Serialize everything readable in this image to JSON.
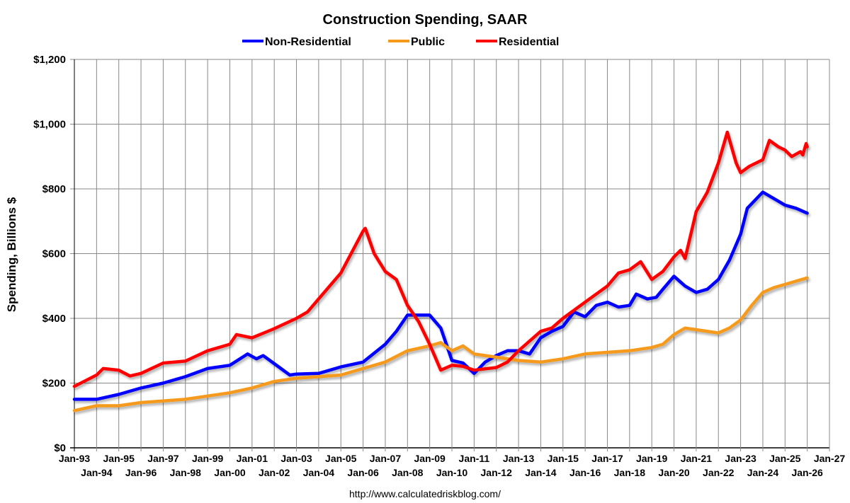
{
  "chart_data": {
    "type": "line",
    "title": "Construction Spending, SAAR",
    "ylabel": "Spending, Billions $",
    "xlabel": "",
    "source": "http://www.calculatedriskblog.com/",
    "legend_placement": "top-center",
    "grid": true,
    "ylim": [
      0,
      1200
    ],
    "yticks": [
      0,
      200,
      400,
      600,
      800,
      1000,
      1200
    ],
    "ytick_labels": [
      "$0",
      "$200",
      "$400",
      "$600",
      "$800",
      "$1,000",
      "$1,200"
    ],
    "xlim": [
      1993,
      2027
    ],
    "xtick_labels": [
      "Jan-93",
      "Jan-94",
      "Jan-95",
      "Jan-96",
      "Jan-97",
      "Jan-98",
      "Jan-99",
      "Jan-00",
      "Jan-01",
      "Jan-02",
      "Jan-03",
      "Jan-04",
      "Jan-05",
      "Jan-06",
      "Jan-07",
      "Jan-08",
      "Jan-09",
      "Jan-10",
      "Jan-11",
      "Jan-12",
      "Jan-13",
      "Jan-14",
      "Jan-15",
      "Jan-16",
      "Jan-17",
      "Jan-18",
      "Jan-19",
      "Jan-20",
      "Jan-21",
      "Jan-22",
      "Jan-23",
      "Jan-24",
      "Jan-25",
      "Jan-26",
      "Jan-27"
    ],
    "series": [
      {
        "name": "Non-Residential",
        "color": "#0000ff",
        "x": [
          1993,
          1994,
          1995,
          1996,
          1997,
          1998,
          1999,
          2000,
          2000.8,
          2001.2,
          2001.5,
          2002,
          2002.7,
          2003,
          2004,
          2005,
          2006,
          2007,
          2007.5,
          2008,
          2008.5,
          2009,
          2009.5,
          2010,
          2010.5,
          2011,
          2011.5,
          2012,
          2012.5,
          2013,
          2013.5,
          2014,
          2014.5,
          2015,
          2015.5,
          2016,
          2016.5,
          2017,
          2017.5,
          2018,
          2018.3,
          2018.8,
          2019.2,
          2019.5,
          2020,
          2020.5,
          2021,
          2021.5,
          2022,
          2022.5,
          2023,
          2023.3,
          2024,
          2024.5,
          2025,
          2025.5,
          2026
        ],
        "y": [
          150,
          150,
          165,
          185,
          200,
          220,
          245,
          255,
          290,
          275,
          285,
          260,
          225,
          228,
          230,
          250,
          265,
          320,
          360,
          410,
          410,
          410,
          370,
          270,
          262,
          230,
          265,
          285,
          300,
          300,
          290,
          340,
          360,
          375,
          420,
          405,
          440,
          450,
          435,
          440,
          475,
          460,
          465,
          490,
          530,
          500,
          480,
          490,
          520,
          580,
          660,
          740,
          790,
          770,
          750,
          740,
          725
        ]
      },
      {
        "name": "Public",
        "color": "#f59a1b",
        "x": [
          1993,
          1994,
          1995,
          1996,
          1997,
          1998,
          1999,
          2000,
          2001,
          2002,
          2003,
          2004,
          2005,
          2006,
          2007,
          2008,
          2009,
          2009.5,
          2010,
          2010.5,
          2011,
          2012,
          2013,
          2014,
          2015,
          2016,
          2017,
          2018,
          2019,
          2019.5,
          2020,
          2020.5,
          2021,
          2022,
          2022.5,
          2023,
          2023.5,
          2024,
          2024.5,
          2025,
          2025.5,
          2026
        ],
        "y": [
          115,
          130,
          130,
          140,
          145,
          150,
          160,
          170,
          185,
          205,
          215,
          220,
          225,
          245,
          265,
          300,
          315,
          325,
          300,
          315,
          290,
          280,
          270,
          265,
          275,
          290,
          295,
          300,
          310,
          320,
          350,
          370,
          365,
          355,
          370,
          395,
          440,
          480,
          495,
          505,
          515,
          525
        ]
      },
      {
        "name": "Residential",
        "color": "#ff0000",
        "x": [
          1993,
          1994,
          1994.3,
          1995,
          1995.5,
          1996,
          1997,
          1998,
          1999,
          2000,
          2000.3,
          2001,
          2002,
          2003,
          2003.5,
          2004,
          2005,
          2006,
          2006.1,
          2006.5,
          2007,
          2007.5,
          2008,
          2008.5,
          2009,
          2009.5,
          2010,
          2010.5,
          2011,
          2012,
          2012.5,
          2013,
          2014,
          2014.5,
          2015,
          2016,
          2017,
          2017.5,
          2018,
          2018.5,
          2019,
          2019.5,
          2020,
          2020.3,
          2020.5,
          2021,
          2021.5,
          2022,
          2022.4,
          2022.8,
          2023,
          2023.4,
          2024,
          2024.3,
          2024.7,
          2025,
          2025.3,
          2025.7,
          2025.8,
          2025.95,
          2026
        ],
        "y": [
          190,
          225,
          245,
          240,
          222,
          230,
          262,
          268,
          300,
          320,
          350,
          340,
          368,
          400,
          420,
          460,
          540,
          670,
          678,
          600,
          545,
          520,
          440,
          390,
          320,
          240,
          255,
          252,
          240,
          248,
          265,
          300,
          360,
          370,
          400,
          450,
          500,
          540,
          550,
          575,
          520,
          545,
          590,
          610,
          585,
          730,
          790,
          880,
          975,
          880,
          850,
          870,
          890,
          950,
          930,
          920,
          900,
          915,
          905,
          940,
          930
        ]
      }
    ]
  }
}
